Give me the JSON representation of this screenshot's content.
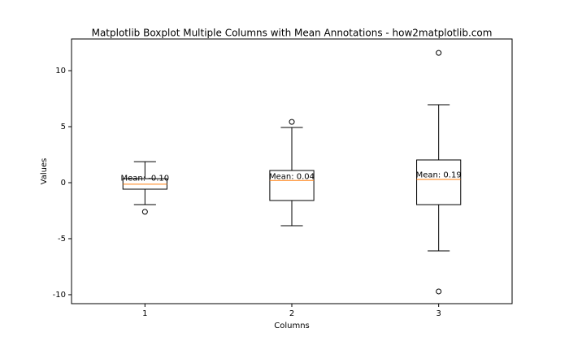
{
  "chart_data": {
    "type": "boxplot",
    "title": "Matplotlib Boxplot Multiple Columns with Mean Annotations - how2matplotlib.com",
    "xlabel": "Columns",
    "ylabel": "Values",
    "categories": [
      "1",
      "2",
      "3"
    ],
    "boxes": [
      {
        "whislo": -1.96,
        "q1": -0.58,
        "med": -0.14,
        "q3": 0.36,
        "whishi": 1.88,
        "fliers": [
          -2.6
        ],
        "mean": -0.1,
        "mean_label": "Mean: -0.10"
      },
      {
        "whislo": -3.84,
        "q1": -1.59,
        "med": 0.2,
        "q3": 1.09,
        "whishi": 4.93,
        "fliers": [
          5.43
        ],
        "mean": 0.04,
        "mean_label": "Mean: 0.04"
      },
      {
        "whislo": -6.09,
        "q1": -1.96,
        "med": 0.29,
        "q3": 2.03,
        "whishi": 6.96,
        "fliers": [
          11.59,
          -9.71
        ],
        "mean": 0.19,
        "mean_label": "Mean: 0.19"
      }
    ],
    "box_color": "#000000",
    "median_color": "#ff7f0e",
    "ylim": [
      -10.8,
      12.83
    ],
    "yticks": [
      -10,
      -5,
      0,
      5,
      10
    ]
  }
}
